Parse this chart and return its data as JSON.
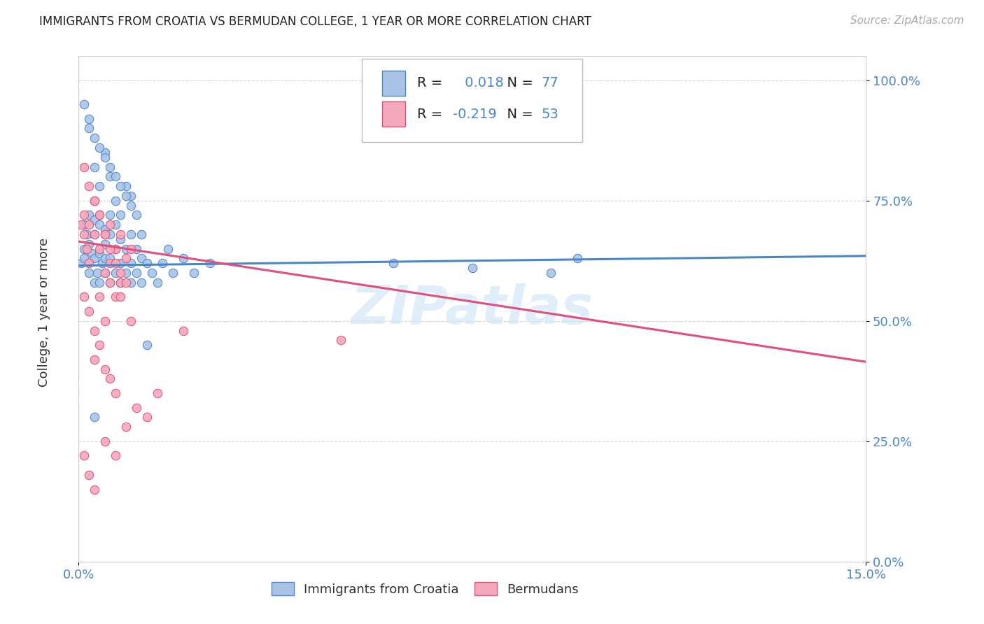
{
  "title": "IMMIGRANTS FROM CROATIA VS BERMUDAN COLLEGE, 1 YEAR OR MORE CORRELATION CHART",
  "source": "Source: ZipAtlas.com",
  "ylabel": "College, 1 year or more",
  "xmin": 0.0,
  "xmax": 0.15,
  "ymin": 0.0,
  "ymax": 1.05,
  "ytick_labels": [
    "0.0%",
    "25.0%",
    "50.0%",
    "75.0%",
    "100.0%"
  ],
  "ytick_values": [
    0.0,
    0.25,
    0.5,
    0.75,
    1.0
  ],
  "xtick_labels": [
    "0.0%",
    "15.0%"
  ],
  "xtick_values": [
    0.0,
    0.15
  ],
  "legend_label1": "Immigrants from Croatia",
  "legend_label2": "Bermudans",
  "r1": "0.018",
  "n1": "77",
  "r2": "-0.219",
  "n2": "53",
  "color1": "#aac4e8",
  "color2": "#f4a8bc",
  "line_color1": "#4a86c8",
  "line_color2": "#e0507a",
  "watermark": "ZIPatlas",
  "background_color": "#ffffff",
  "trendline1_x": [
    0.0,
    0.15
  ],
  "trendline1_y": [
    0.615,
    0.635
  ],
  "trendline2_x": [
    0.0,
    0.15
  ],
  "trendline2_y": [
    0.665,
    0.415
  ],
  "scatter1_x": [
    0.0005,
    0.001,
    0.001,
    0.001,
    0.0015,
    0.002,
    0.002,
    0.002,
    0.0025,
    0.003,
    0.003,
    0.003,
    0.003,
    0.0035,
    0.004,
    0.004,
    0.004,
    0.0045,
    0.005,
    0.005,
    0.005,
    0.005,
    0.006,
    0.006,
    0.006,
    0.006,
    0.007,
    0.007,
    0.007,
    0.008,
    0.008,
    0.008,
    0.009,
    0.009,
    0.01,
    0.01,
    0.01,
    0.011,
    0.011,
    0.012,
    0.012,
    0.013,
    0.014,
    0.015,
    0.016,
    0.017,
    0.018,
    0.02,
    0.022,
    0.025,
    0.003,
    0.004,
    0.005,
    0.006,
    0.007,
    0.008,
    0.009,
    0.01,
    0.011,
    0.012,
    0.002,
    0.003,
    0.004,
    0.005,
    0.006,
    0.007,
    0.008,
    0.009,
    0.01,
    0.013,
    0.001,
    0.002,
    0.003,
    0.06,
    0.075,
    0.09,
    0.095
  ],
  "scatter1_y": [
    0.62,
    0.65,
    0.7,
    0.63,
    0.68,
    0.6,
    0.66,
    0.72,
    0.64,
    0.58,
    0.63,
    0.68,
    0.71,
    0.6,
    0.58,
    0.64,
    0.7,
    0.62,
    0.6,
    0.66,
    0.63,
    0.69,
    0.58,
    0.63,
    0.68,
    0.72,
    0.6,
    0.65,
    0.7,
    0.58,
    0.62,
    0.67,
    0.6,
    0.65,
    0.58,
    0.62,
    0.68,
    0.6,
    0.65,
    0.58,
    0.63,
    0.62,
    0.6,
    0.58,
    0.62,
    0.65,
    0.6,
    0.63,
    0.6,
    0.62,
    0.82,
    0.78,
    0.85,
    0.8,
    0.75,
    0.72,
    0.78,
    0.76,
    0.72,
    0.68,
    0.9,
    0.88,
    0.86,
    0.84,
    0.82,
    0.8,
    0.78,
    0.76,
    0.74,
    0.45,
    0.95,
    0.92,
    0.3,
    0.62,
    0.61,
    0.6,
    0.63
  ],
  "scatter2_x": [
    0.0005,
    0.001,
    0.001,
    0.0015,
    0.002,
    0.002,
    0.003,
    0.003,
    0.004,
    0.004,
    0.005,
    0.005,
    0.006,
    0.006,
    0.007,
    0.007,
    0.008,
    0.008,
    0.009,
    0.01,
    0.001,
    0.002,
    0.003,
    0.004,
    0.005,
    0.006,
    0.007,
    0.008,
    0.009,
    0.001,
    0.002,
    0.003,
    0.004,
    0.005,
    0.006,
    0.008,
    0.01,
    0.003,
    0.004,
    0.005,
    0.006,
    0.007,
    0.02,
    0.05,
    0.001,
    0.002,
    0.003,
    0.005,
    0.007,
    0.009,
    0.011,
    0.013,
    0.015
  ],
  "scatter2_y": [
    0.7,
    0.68,
    0.72,
    0.65,
    0.62,
    0.7,
    0.68,
    0.75,
    0.65,
    0.72,
    0.6,
    0.68,
    0.62,
    0.7,
    0.55,
    0.65,
    0.58,
    0.68,
    0.63,
    0.65,
    0.82,
    0.78,
    0.75,
    0.72,
    0.68,
    0.65,
    0.62,
    0.6,
    0.58,
    0.55,
    0.52,
    0.48,
    0.55,
    0.5,
    0.58,
    0.55,
    0.5,
    0.42,
    0.45,
    0.4,
    0.38,
    0.35,
    0.48,
    0.46,
    0.22,
    0.18,
    0.15,
    0.25,
    0.22,
    0.28,
    0.32,
    0.3,
    0.35
  ]
}
